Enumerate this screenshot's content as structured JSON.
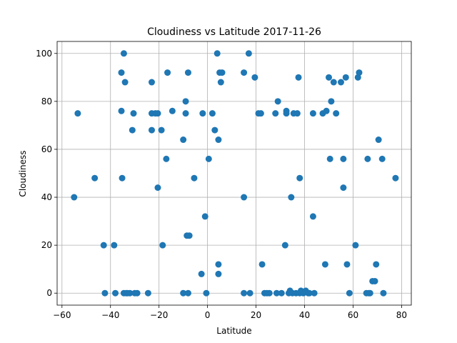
{
  "chart_data": {
    "type": "scatter",
    "title": "Cloudiness vs Latitude 2017-11-26",
    "xlabel": "Latitude",
    "ylabel": "Cloudiness",
    "xlim": [
      -62,
      84
    ],
    "ylim": [
      -5,
      105
    ],
    "xticks": [
      -60,
      -40,
      -20,
      0,
      20,
      40,
      60,
      80
    ],
    "yticks": [
      0,
      20,
      40,
      60,
      80,
      100
    ],
    "grid": true,
    "marker_color": "#1f77b4",
    "series": [
      {
        "points": [
          [
            -55,
            40
          ],
          [
            -53.5,
            75
          ],
          [
            -46.5,
            48
          ],
          [
            -42.8,
            20
          ],
          [
            -42.3,
            0
          ],
          [
            -38.5,
            20
          ],
          [
            -38,
            0
          ],
          [
            -35.5,
            92
          ],
          [
            -35.5,
            76
          ],
          [
            -35.2,
            48
          ],
          [
            -34.5,
            100
          ],
          [
            -34,
            88
          ],
          [
            -34.5,
            0
          ],
          [
            -33.5,
            0
          ],
          [
            -33,
            0
          ],
          [
            -32,
            0
          ],
          [
            -31,
            68
          ],
          [
            -30.5,
            75
          ],
          [
            -30,
            0
          ],
          [
            -29,
            0
          ],
          [
            -24.5,
            0
          ],
          [
            -23,
            88
          ],
          [
            -23,
            75
          ],
          [
            -23,
            68
          ],
          [
            -21.5,
            75
          ],
          [
            -20.5,
            75
          ],
          [
            -20.5,
            44
          ],
          [
            -19,
            68
          ],
          [
            -18.5,
            20
          ],
          [
            -17,
            56
          ],
          [
            -16.5,
            92
          ],
          [
            -14.5,
            76
          ],
          [
            -10,
            64
          ],
          [
            -10,
            0
          ],
          [
            -9,
            80
          ],
          [
            -9,
            75
          ],
          [
            -8.5,
            24
          ],
          [
            -8,
            92
          ],
          [
            -8,
            0
          ],
          [
            -7.5,
            24
          ],
          [
            -5.5,
            48
          ],
          [
            -2.5,
            8
          ],
          [
            -2,
            75
          ],
          [
            -1,
            32
          ],
          [
            -0.5,
            0
          ],
          [
            0.5,
            56
          ],
          [
            2,
            75
          ],
          [
            3,
            68
          ],
          [
            4,
            100
          ],
          [
            4.5,
            64
          ],
          [
            4.5,
            12
          ],
          [
            4.5,
            8
          ],
          [
            5,
            92
          ],
          [
            5.5,
            88
          ],
          [
            6,
            92
          ],
          [
            15,
            92
          ],
          [
            15,
            40
          ],
          [
            15,
            0
          ],
          [
            17,
            100
          ],
          [
            17.5,
            0
          ],
          [
            19.5,
            90
          ],
          [
            21,
            75
          ],
          [
            22,
            75
          ],
          [
            22.5,
            12
          ],
          [
            23.5,
            0
          ],
          [
            24.5,
            0
          ],
          [
            25.5,
            0
          ],
          [
            28,
            75
          ],
          [
            28.5,
            0
          ],
          [
            29,
            80
          ],
          [
            30.5,
            0
          ],
          [
            32,
            20
          ],
          [
            32.5,
            76
          ],
          [
            32.5,
            75
          ],
          [
            33.5,
            0
          ],
          [
            34,
            1
          ],
          [
            34.5,
            40
          ],
          [
            35,
            0
          ],
          [
            35.5,
            75
          ],
          [
            36.5,
            0
          ],
          [
            37,
            75
          ],
          [
            37.5,
            90
          ],
          [
            38,
            48
          ],
          [
            38,
            0
          ],
          [
            38.5,
            1
          ],
          [
            39.5,
            0
          ],
          [
            40.5,
            1
          ],
          [
            41.5,
            0
          ],
          [
            42,
            0
          ],
          [
            43.5,
            75
          ],
          [
            43.5,
            32
          ],
          [
            44,
            0
          ],
          [
            47.5,
            75
          ],
          [
            48.5,
            12
          ],
          [
            49,
            76
          ],
          [
            50,
            90
          ],
          [
            50.5,
            56
          ],
          [
            51,
            80
          ],
          [
            52,
            88
          ],
          [
            53,
            75
          ],
          [
            55,
            88
          ],
          [
            56,
            56
          ],
          [
            56,
            44
          ],
          [
            57,
            90
          ],
          [
            57.5,
            12
          ],
          [
            58.5,
            0
          ],
          [
            61,
            20
          ],
          [
            62,
            90
          ],
          [
            62.5,
            92
          ],
          [
            65.5,
            0
          ],
          [
            66,
            56
          ],
          [
            66.5,
            0
          ],
          [
            67,
            0
          ],
          [
            68,
            5
          ],
          [
            69,
            5
          ],
          [
            69.5,
            12
          ],
          [
            70.5,
            64
          ],
          [
            72,
            56
          ],
          [
            72.5,
            0
          ],
          [
            77.5,
            48
          ]
        ]
      }
    ]
  }
}
